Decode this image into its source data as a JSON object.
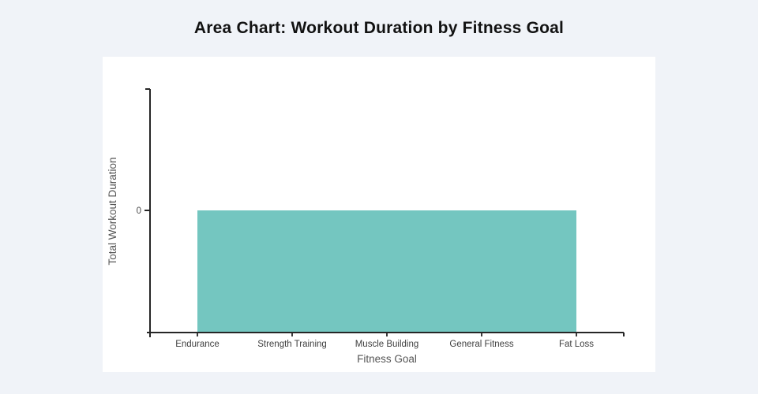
{
  "chart_data": {
    "type": "area",
    "title": "Area Chart: Workout Duration by Fitness Goal",
    "xlabel": "Fitness Goal",
    "ylabel": "Total Workout Duration",
    "categories": [
      "Endurance",
      "Strength Training",
      "Muscle Building",
      "General Fitness",
      "Fat Loss"
    ],
    "values": [
      0,
      0,
      0,
      0,
      0
    ],
    "yticks": [
      "0"
    ],
    "legend": "none",
    "grid": "off",
    "colors": {
      "area_fill": "#74c6c0",
      "axis_line": "#262626",
      "tick_label": "#4a4a4a",
      "axis_title": "#555555",
      "page_background": "#f0f3f8",
      "plot_background": "#ffffff",
      "title_text": "#121212"
    }
  }
}
